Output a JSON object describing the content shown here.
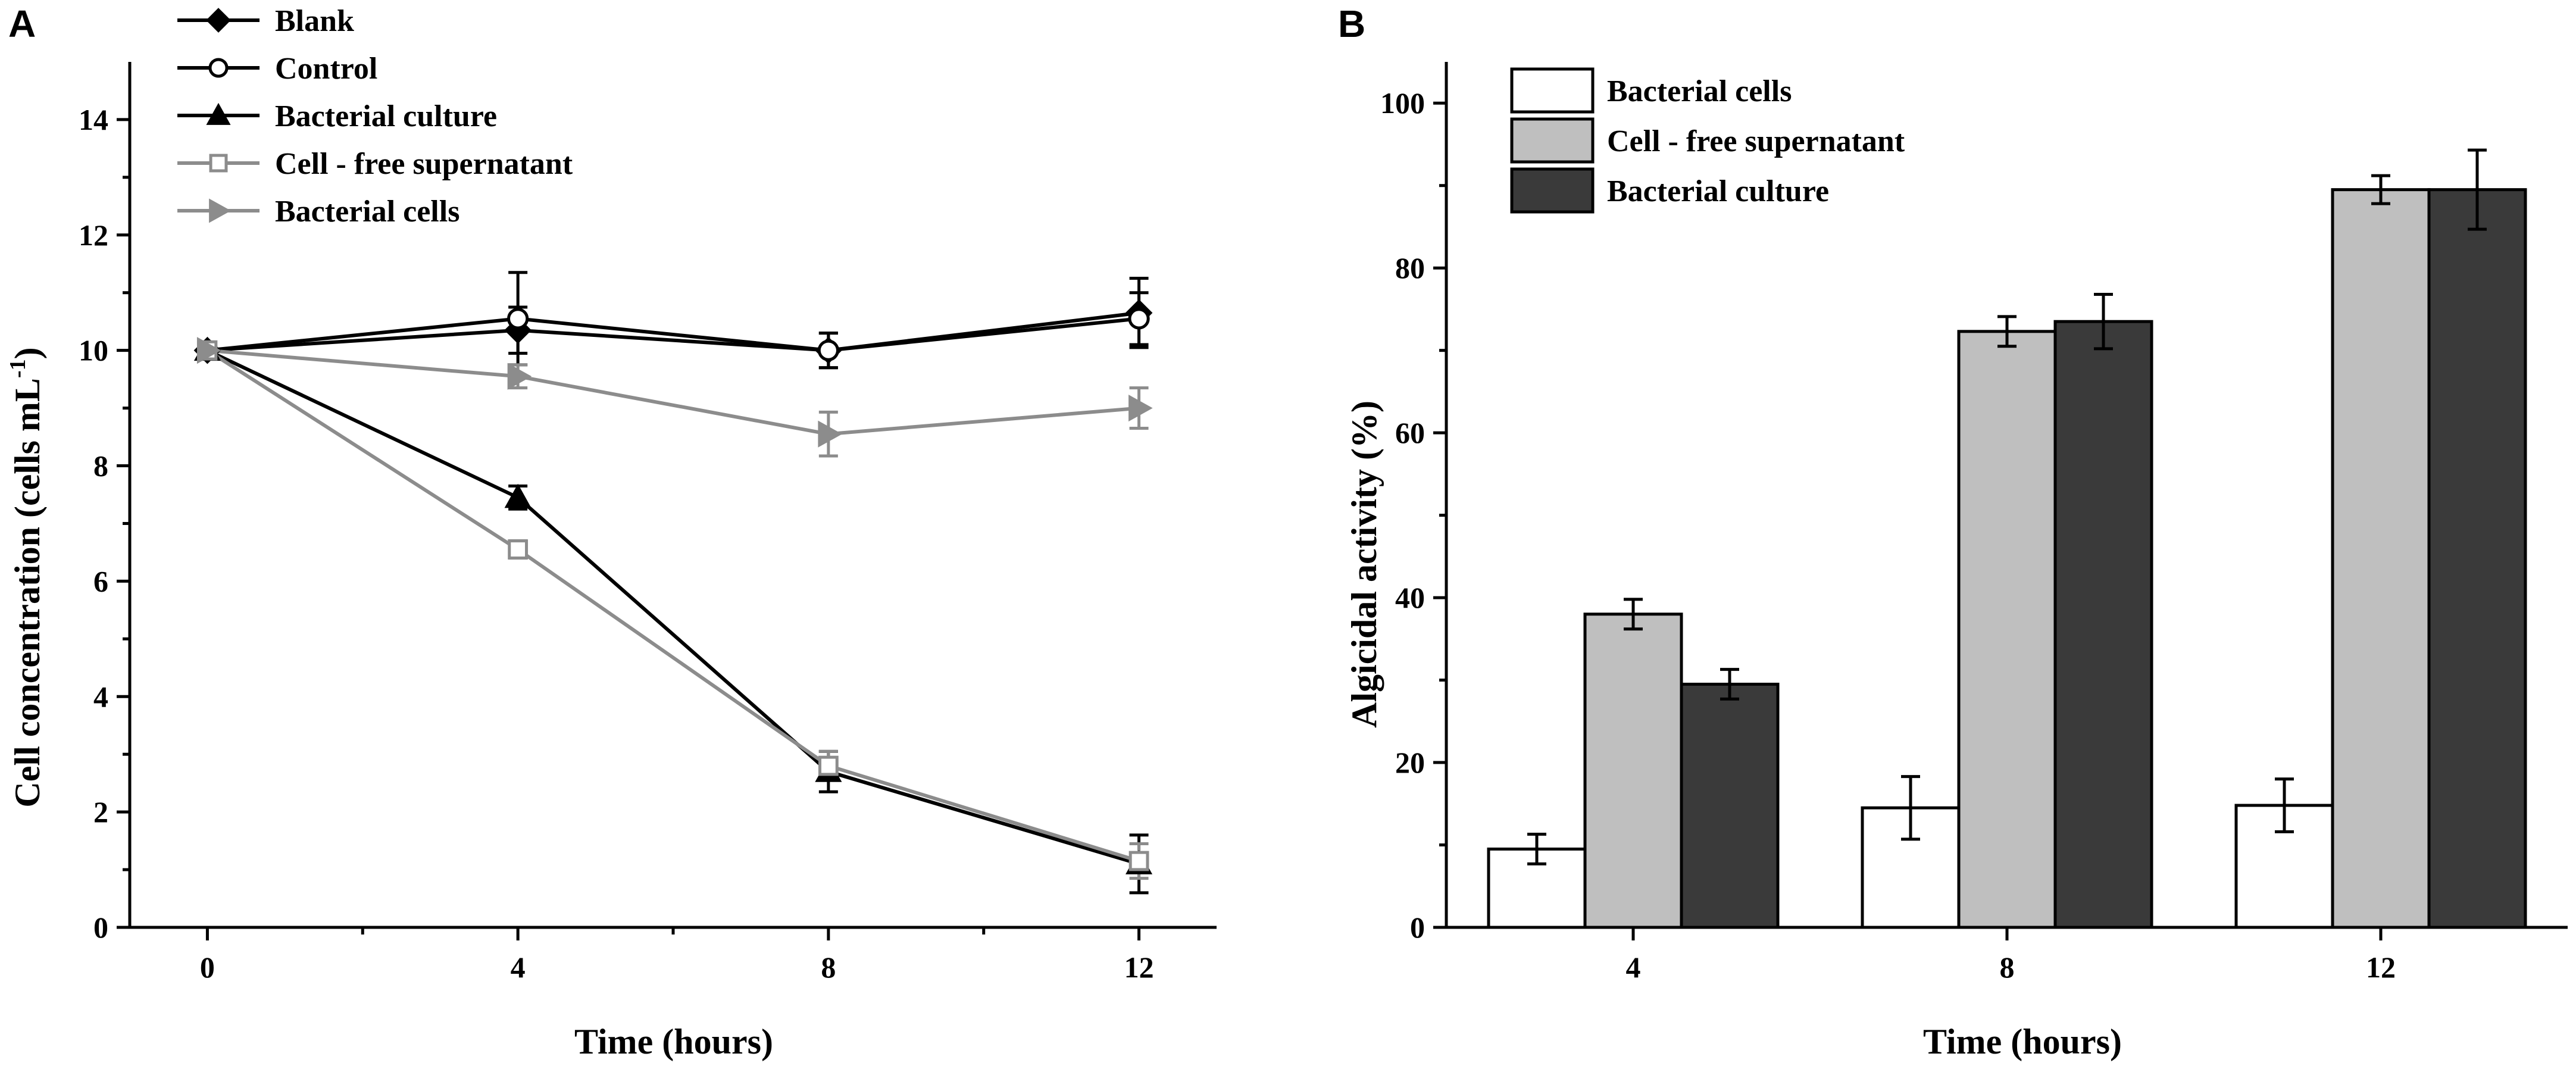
{
  "colors": {
    "black": "#000000",
    "gray": "#8c8c8c",
    "light_gray": "#bfbfbf",
    "dark_gray": "#3a3a3a",
    "white": "#ffffff"
  },
  "chart_data": [
    {
      "panel": "A",
      "type": "line",
      "xlabel": "Time (hours)",
      "ylabel_main": "Cell concentration (cells mL",
      "ylabel_sup": "-1",
      "ylabel_end": ")",
      "x": [
        0,
        4,
        8,
        12
      ],
      "xlim": [
        -1,
        13
      ],
      "ylim": [
        0,
        15
      ],
      "xticks": [
        "0",
        "4",
        "8",
        "12"
      ],
      "yticks": [
        "0",
        "2",
        "4",
        "6",
        "8",
        "10",
        "12",
        "14"
      ],
      "legend_position": "top-left",
      "series": [
        {
          "name": "Blank",
          "marker": "diamond",
          "color": "#000000",
          "fill": "#000000",
          "values": [
            10.0,
            10.35,
            10.0,
            10.65
          ],
          "errors": [
            0.05,
            0.4,
            0.3,
            0.6
          ]
        },
        {
          "name": "Control",
          "marker": "circle-open",
          "color": "#000000",
          "fill": "#ffffff",
          "values": [
            10.0,
            10.55,
            10.0,
            10.55
          ],
          "errors": [
            0.05,
            0.8,
            0.3,
            0.45
          ]
        },
        {
          "name": "Bacterial culture",
          "marker": "triangle",
          "color": "#000000",
          "fill": "#000000",
          "values": [
            10.0,
            7.45,
            2.7,
            1.1
          ],
          "errors": [
            0.05,
            0.2,
            0.35,
            0.5
          ]
        },
        {
          "name": "Cell - free supernatant",
          "marker": "square-open",
          "color": "#8c8c8c",
          "fill": "#ffffff",
          "values": [
            10.0,
            6.55,
            2.8,
            1.15
          ],
          "errors": [
            0.05,
            0.15,
            0.25,
            0.3
          ]
        },
        {
          "name": "Bacterial cells",
          "marker": "triangle-right",
          "color": "#8c8c8c",
          "fill": "#8c8c8c",
          "values": [
            10.0,
            9.55,
            8.55,
            9.0
          ],
          "errors": [
            0.05,
            0.2,
            0.38,
            0.35
          ]
        }
      ]
    },
    {
      "panel": "B",
      "type": "bar",
      "xlabel": "Time (hours)",
      "ylabel": "Algicidal activity (%)",
      "categories": [
        "4",
        "8",
        "12"
      ],
      "ylim": [
        0,
        105
      ],
      "yticks": [
        "0",
        "20",
        "40",
        "60",
        "80",
        "100"
      ],
      "legend_position": "top-left",
      "series": [
        {
          "name": "Bacterial cells",
          "color": "#ffffff",
          "values": [
            9.5,
            14.5,
            14.8
          ],
          "errors": [
            1.8,
            3.8,
            3.2
          ]
        },
        {
          "name": "Cell - free supernatant",
          "color": "#bfbfbf",
          "values": [
            38.0,
            72.3,
            89.5
          ],
          "errors": [
            1.8,
            1.8,
            1.7
          ]
        },
        {
          "name": "Bacterial culture",
          "color": "#3a3a3a",
          "values": [
            29.5,
            73.5,
            89.5
          ],
          "errors": [
            1.8,
            3.3,
            4.8
          ]
        }
      ]
    }
  ]
}
